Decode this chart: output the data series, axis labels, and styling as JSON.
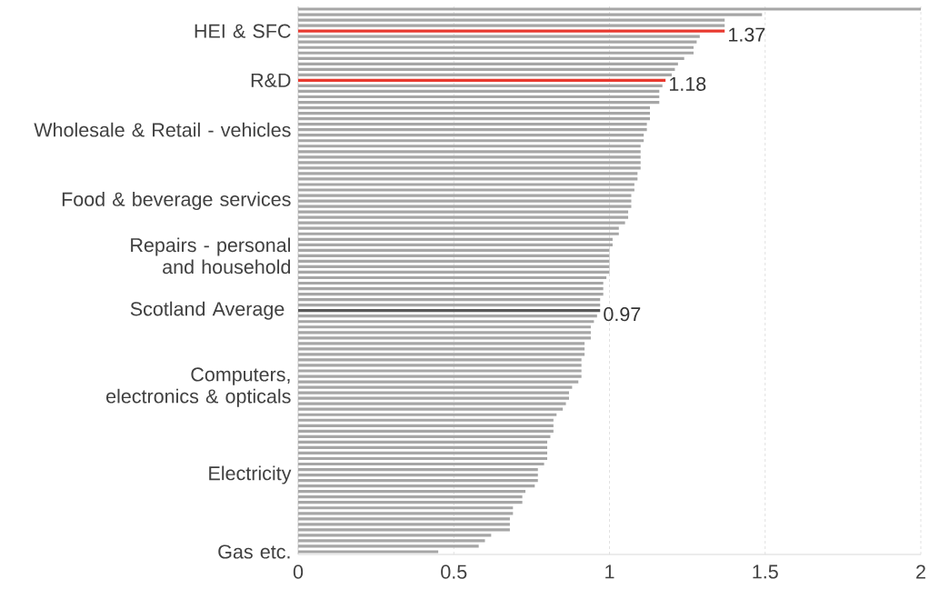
{
  "chart_data": {
    "type": "bar",
    "orientation": "horizontal",
    "categories": [
      null,
      null,
      null,
      null,
      "HEI & SFC",
      null,
      null,
      null,
      null,
      null,
      null,
      null,
      null,
      "R&D",
      null,
      null,
      null,
      null,
      null,
      null,
      null,
      null,
      "Wholesale & Retail - vehicles",
      null,
      null,
      null,
      null,
      null,
      null,
      null,
      null,
      null,
      null,
      null,
      null,
      "Food & beverage services",
      null,
      null,
      null,
      null,
      null,
      null,
      null,
      null,
      null,
      "Repairs - personal and household",
      null,
      null,
      null,
      null,
      null,
      null,
      null,
      null,
      null,
      "Scotland Average ",
      null,
      null,
      null,
      null,
      null,
      null,
      null,
      null,
      null,
      null,
      null,
      null,
      null,
      "Computers, electronics & opticals",
      null,
      null,
      null,
      null,
      null,
      null,
      null,
      null,
      null,
      null,
      null,
      null,
      null,
      null,
      null,
      "Electricity",
      null,
      null,
      null,
      null,
      null,
      null,
      null,
      null,
      null,
      null,
      null,
      null,
      null,
      "Gas etc."
    ],
    "values": [
      2.0,
      1.49,
      1.37,
      1.37,
      1.37,
      1.29,
      1.28,
      1.27,
      1.27,
      1.24,
      1.22,
      1.21,
      1.2,
      1.18,
      1.17,
      1.16,
      1.16,
      1.16,
      1.13,
      1.13,
      1.13,
      1.12,
      1.12,
      1.11,
      1.11,
      1.1,
      1.1,
      1.1,
      1.1,
      1.1,
      1.09,
      1.09,
      1.08,
      1.08,
      1.07,
      1.07,
      1.07,
      1.06,
      1.06,
      1.05,
      1.03,
      1.03,
      1.01,
      1.01,
      1.0,
      1.0,
      1.0,
      1.0,
      1.0,
      0.99,
      0.98,
      0.98,
      0.98,
      0.97,
      0.97,
      0.97,
      0.96,
      0.95,
      0.94,
      0.94,
      0.94,
      0.92,
      0.92,
      0.92,
      0.91,
      0.91,
      0.91,
      0.91,
      0.9,
      0.88,
      0.87,
      0.87,
      0.86,
      0.85,
      0.83,
      0.82,
      0.82,
      0.82,
      0.81,
      0.8,
      0.8,
      0.8,
      0.8,
      0.79,
      0.77,
      0.77,
      0.77,
      0.76,
      0.73,
      0.72,
      0.72,
      0.69,
      0.69,
      0.68,
      0.68,
      0.68,
      0.62,
      0.6,
      0.58,
      0.45
    ],
    "colors": [
      "#a6a6a6",
      "#a6a6a6",
      "#a6a6a6",
      "#a6a6a6",
      "#e8392f",
      "#a6a6a6",
      "#a6a6a6",
      "#a6a6a6",
      "#a6a6a6",
      "#a6a6a6",
      "#a6a6a6",
      "#a6a6a6",
      "#a6a6a6",
      "#e8392f",
      "#a6a6a6",
      "#a6a6a6",
      "#a6a6a6",
      "#a6a6a6",
      "#a6a6a6",
      "#a6a6a6",
      "#a6a6a6",
      "#a6a6a6",
      "#a6a6a6",
      "#a6a6a6",
      "#a6a6a6",
      "#a6a6a6",
      "#a6a6a6",
      "#a6a6a6",
      "#a6a6a6",
      "#a6a6a6",
      "#a6a6a6",
      "#a6a6a6",
      "#a6a6a6",
      "#a6a6a6",
      "#a6a6a6",
      "#a6a6a6",
      "#a6a6a6",
      "#a6a6a6",
      "#a6a6a6",
      "#a6a6a6",
      "#a6a6a6",
      "#a6a6a6",
      "#a6a6a6",
      "#a6a6a6",
      "#a6a6a6",
      "#a6a6a6",
      "#a6a6a6",
      "#a6a6a6",
      "#a6a6a6",
      "#a6a6a6",
      "#a6a6a6",
      "#a6a6a6",
      "#a6a6a6",
      "#a6a6a6",
      "#a6a6a6",
      "#595959",
      "#a6a6a6",
      "#a6a6a6",
      "#a6a6a6",
      "#a6a6a6",
      "#a6a6a6",
      "#a6a6a6",
      "#a6a6a6",
      "#a6a6a6",
      "#a6a6a6",
      "#a6a6a6",
      "#a6a6a6",
      "#a6a6a6",
      "#a6a6a6",
      "#a6a6a6",
      "#a6a6a6",
      "#a6a6a6",
      "#a6a6a6",
      "#a6a6a6",
      "#a6a6a6",
      "#a6a6a6",
      "#a6a6a6",
      "#a6a6a6",
      "#a6a6a6",
      "#a6a6a6",
      "#a6a6a6",
      "#a6a6a6",
      "#a6a6a6",
      "#a6a6a6",
      "#a6a6a6",
      "#a6a6a6",
      "#a6a6a6",
      "#a6a6a6",
      "#a6a6a6",
      "#a6a6a6",
      "#a6a6a6",
      "#a6a6a6",
      "#a6a6a6",
      "#a6a6a6",
      "#a6a6a6",
      "#a6a6a6",
      "#a6a6a6",
      "#a6a6a6",
      "#a6a6a6",
      "#a6a6a6"
    ],
    "value_labels": [
      null,
      null,
      null,
      null,
      "1.37",
      null,
      null,
      null,
      null,
      null,
      null,
      null,
      null,
      "1.18",
      null,
      null,
      null,
      null,
      null,
      null,
      null,
      null,
      null,
      null,
      null,
      null,
      null,
      null,
      null,
      null,
      null,
      null,
      null,
      null,
      null,
      null,
      null,
      null,
      null,
      null,
      null,
      null,
      null,
      null,
      null,
      null,
      null,
      null,
      null,
      null,
      null,
      null,
      null,
      null,
      null,
      "0.97",
      null,
      null,
      null,
      null,
      null,
      null,
      null,
      null,
      null,
      null,
      null,
      null,
      null,
      null,
      null,
      null,
      null,
      null,
      null,
      null,
      null,
      null,
      null,
      null,
      null,
      null,
      null,
      null,
      null,
      null,
      null,
      null,
      null,
      null,
      null,
      null,
      null,
      null,
      null,
      null,
      null,
      null,
      null,
      null
    ],
    "xlim": [
      0,
      2
    ],
    "xticks": [
      0,
      0.5,
      1,
      1.5,
      2
    ],
    "grid": "x"
  }
}
